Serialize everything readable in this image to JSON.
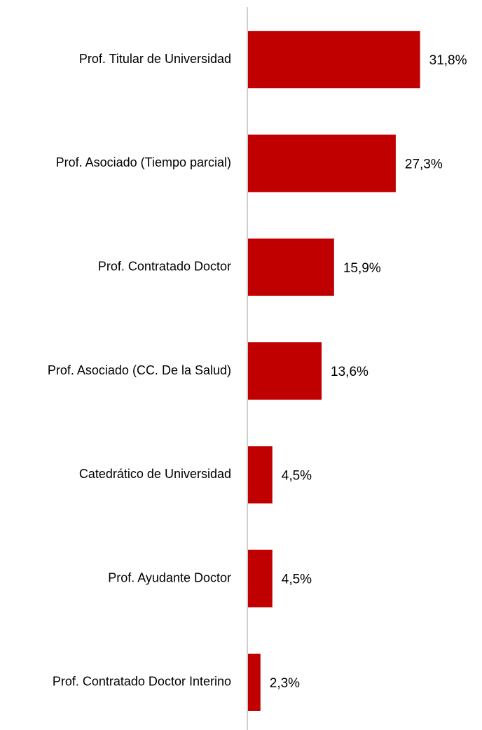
{
  "chart_data": {
    "type": "bar",
    "orientation": "horizontal",
    "categories": [
      "Prof. Titular de Universidad",
      "Prof. Asociado (Tiempo parcial)",
      "Prof. Contratado Doctor",
      "Prof. Asociado (CC. De la Salud)",
      "Catedrático de Universidad",
      "Prof. Ayudante Doctor",
      "Prof. Contratado Doctor Interino"
    ],
    "values": [
      31.8,
      27.3,
      15.9,
      13.6,
      4.5,
      4.5,
      2.3
    ],
    "value_labels": [
      "31,8%",
      "27,3%",
      "15,9%",
      "13,6%",
      "4,5%",
      "4,5%",
      "2,3%"
    ],
    "color": "#c00000",
    "xlim": [
      0,
      40
    ]
  }
}
